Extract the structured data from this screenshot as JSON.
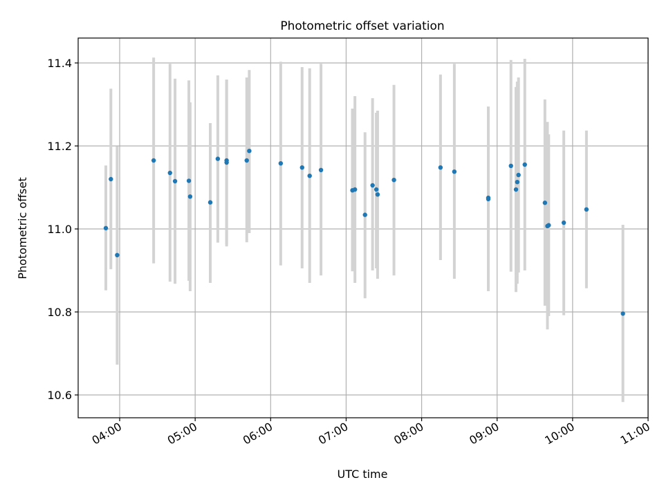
{
  "chart_data": {
    "type": "scatter",
    "title": "Photometric offset variation",
    "xlabel": "UTC time",
    "ylabel": "Photometric offset",
    "grid": true,
    "x_axis_type": "time",
    "xlim": [
      "03:27",
      "11:00"
    ],
    "ylim": [
      10.545,
      11.46
    ],
    "xticks": [
      "04:00",
      "05:00",
      "06:00",
      "07:00",
      "08:00",
      "09:00",
      "10:00",
      "11:00"
    ],
    "yticks": [
      10.6,
      10.8,
      11.0,
      11.2,
      11.4
    ],
    "ytick_labels": [
      "10.6",
      "10.8",
      "11.0",
      "11.2",
      "11.4"
    ],
    "point_color": "#1f77b4",
    "errorbar_color": "#d3d3d3",
    "series": [
      {
        "points": [
          {
            "x": "03:49",
            "y": 11.002,
            "ylo": 10.852,
            "yhi": 11.153
          },
          {
            "x": "03:53",
            "y": 11.12,
            "ylo": 10.903,
            "yhi": 11.338
          },
          {
            "x": "03:58",
            "y": 10.937,
            "ylo": 10.673,
            "yhi": 11.199
          },
          {
            "x": "04:27",
            "y": 11.165,
            "ylo": 10.917,
            "yhi": 11.413
          },
          {
            "x": "04:40",
            "y": 11.135,
            "ylo": 10.873,
            "yhi": 11.398
          },
          {
            "x": "04:44",
            "y": 11.115,
            "ylo": 10.868,
            "yhi": 11.362
          },
          {
            "x": "04:55",
            "y": 11.116,
            "ylo": 10.875,
            "yhi": 11.358
          },
          {
            "x": "04:56",
            "y": 11.078,
            "ylo": 10.85,
            "yhi": 11.305
          },
          {
            "x": "05:12",
            "y": 11.064,
            "ylo": 10.87,
            "yhi": 11.255
          },
          {
            "x": "05:18",
            "y": 11.169,
            "ylo": 10.967,
            "yhi": 11.37
          },
          {
            "x": "05:25",
            "y": 11.16,
            "ylo": 10.958,
            "yhi": 11.36
          },
          {
            "x": "05:25",
            "y": 11.165,
            "ylo": 10.962,
            "yhi": 11.36
          },
          {
            "x": "05:41",
            "y": 11.165,
            "ylo": 10.968,
            "yhi": 11.365
          },
          {
            "x": "05:43",
            "y": 11.188,
            "ylo": 10.99,
            "yhi": 11.383
          },
          {
            "x": "06:08",
            "y": 11.158,
            "ylo": 10.912,
            "yhi": 11.403
          },
          {
            "x": "06:25",
            "y": 11.148,
            "ylo": 10.905,
            "yhi": 11.39
          },
          {
            "x": "06:31",
            "y": 11.128,
            "ylo": 10.87,
            "yhi": 11.387
          },
          {
            "x": "06:40",
            "y": 11.142,
            "ylo": 10.888,
            "yhi": 11.398
          },
          {
            "x": "07:05",
            "y": 11.093,
            "ylo": 10.898,
            "yhi": 11.29
          },
          {
            "x": "07:07",
            "y": 11.095,
            "ylo": 10.87,
            "yhi": 11.32
          },
          {
            "x": "07:15",
            "y": 11.034,
            "ylo": 10.833,
            "yhi": 11.233
          },
          {
            "x": "07:21",
            "y": 11.105,
            "ylo": 10.9,
            "yhi": 11.315
          },
          {
            "x": "07:24",
            "y": 11.095,
            "ylo": 10.905,
            "yhi": 11.28
          },
          {
            "x": "07:25",
            "y": 11.083,
            "ylo": 10.88,
            "yhi": 11.285
          },
          {
            "x": "07:38",
            "y": 11.118,
            "ylo": 10.888,
            "yhi": 11.347
          },
          {
            "x": "08:15",
            "y": 11.148,
            "ylo": 10.925,
            "yhi": 11.372
          },
          {
            "x": "08:26",
            "y": 11.138,
            "ylo": 10.88,
            "yhi": 11.398
          },
          {
            "x": "08:53",
            "y": 11.072,
            "ylo": 10.85,
            "yhi": 11.295
          },
          {
            "x": "08:53",
            "y": 11.075,
            "ylo": 10.86,
            "yhi": 11.29
          },
          {
            "x": "09:11",
            "y": 11.152,
            "ylo": 10.897,
            "yhi": 11.407
          },
          {
            "x": "09:15",
            "y": 11.095,
            "ylo": 10.848,
            "yhi": 11.342
          },
          {
            "x": "09:16",
            "y": 11.113,
            "ylo": 10.868,
            "yhi": 11.355
          },
          {
            "x": "09:17",
            "y": 11.13,
            "ylo": 10.895,
            "yhi": 11.365
          },
          {
            "x": "09:22",
            "y": 11.155,
            "ylo": 10.9,
            "yhi": 11.41
          },
          {
            "x": "09:38",
            "y": 11.063,
            "ylo": 10.815,
            "yhi": 11.312
          },
          {
            "x": "09:40",
            "y": 11.007,
            "ylo": 10.758,
            "yhi": 11.258
          },
          {
            "x": "09:41",
            "y": 11.009,
            "ylo": 10.79,
            "yhi": 11.228
          },
          {
            "x": "09:53",
            "y": 11.015,
            "ylo": 10.792,
            "yhi": 11.237
          },
          {
            "x": "10:11",
            "y": 11.047,
            "ylo": 10.857,
            "yhi": 11.237
          },
          {
            "x": "10:40",
            "y": 10.796,
            "ylo": 10.583,
            "yhi": 11.01
          }
        ]
      }
    ]
  }
}
